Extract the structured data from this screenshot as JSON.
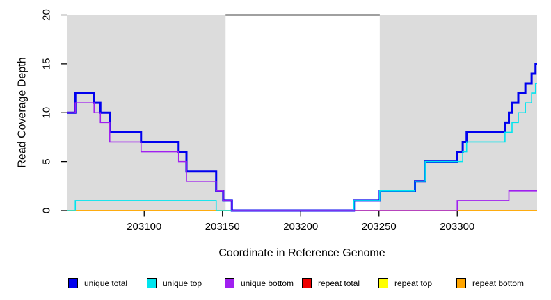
{
  "chart_data": {
    "type": "line",
    "title": "",
    "xlabel": "Coordinate in Reference Genome",
    "ylabel": "Read Coverage Depth",
    "xlim": [
      203051,
      203351
    ],
    "ylim": [
      0,
      20
    ],
    "x_ticks": [
      203100,
      203150,
      203200,
      203250,
      203300
    ],
    "y_ticks": [
      0,
      5,
      10,
      15,
      20
    ],
    "grid": false,
    "step_mode": "after",
    "background": "#FFFFFF",
    "masked_color": "#DCDCDC",
    "masked_regions": [
      [
        203051,
        203152
      ],
      [
        203250.5,
        203351
      ]
    ],
    "top_segment": {
      "y": 20,
      "x": [
        203152,
        203250.5
      ],
      "color": "#000000"
    },
    "legend_position": "bottom",
    "draw_order": [
      "repeat total",
      "repeat top",
      "repeat bottom",
      "unique total",
      "unique top",
      "unique bottom"
    ],
    "series": [
      {
        "name": "unique total",
        "color": "#0000EE",
        "width": 3,
        "points": [
          [
            203051,
            10
          ],
          [
            203056,
            12
          ],
          [
            203068,
            11
          ],
          [
            203072,
            10
          ],
          [
            203078,
            8
          ],
          [
            203098,
            7
          ],
          [
            203122,
            6
          ],
          [
            203127,
            4
          ],
          [
            203146,
            2
          ],
          [
            203150.5,
            1
          ],
          [
            203156,
            0
          ],
          [
            203234,
            1
          ],
          [
            203250.5,
            2
          ],
          [
            203273,
            3
          ],
          [
            203279.5,
            5
          ],
          [
            203300,
            6
          ],
          [
            203303.5,
            7
          ],
          [
            203306,
            8
          ],
          [
            203330.5,
            9
          ],
          [
            203333,
            10
          ],
          [
            203335,
            11
          ],
          [
            203339,
            12
          ],
          [
            203343.5,
            13
          ],
          [
            203347.5,
            14
          ],
          [
            203350,
            15
          ]
        ]
      },
      {
        "name": "unique top",
        "color": "#00E5EE",
        "width": 1.6,
        "points": [
          [
            203051,
            0
          ],
          [
            203056,
            1
          ],
          [
            203146,
            0
          ],
          [
            203234,
            1
          ],
          [
            203250.5,
            2
          ],
          [
            203273,
            3
          ],
          [
            203279.5,
            5
          ],
          [
            203303.5,
            6
          ],
          [
            203306,
            7
          ],
          [
            203330.5,
            8
          ],
          [
            203335,
            9
          ],
          [
            203339,
            10
          ],
          [
            203343.5,
            11
          ],
          [
            203347.5,
            12
          ],
          [
            203350,
            13
          ]
        ]
      },
      {
        "name": "unique bottom",
        "color": "#A020F0",
        "width": 1.6,
        "points": [
          [
            203051,
            10
          ],
          [
            203056,
            11
          ],
          [
            203068,
            10
          ],
          [
            203072,
            9
          ],
          [
            203078,
            7
          ],
          [
            203098,
            6
          ],
          [
            203122,
            5
          ],
          [
            203127,
            3
          ],
          [
            203146,
            2
          ],
          [
            203150.5,
            1
          ],
          [
            203156,
            0
          ],
          [
            203300,
            1
          ],
          [
            203333,
            2
          ]
        ]
      },
      {
        "name": "repeat total",
        "color": "#EE0000",
        "width": 1.6,
        "points": [
          [
            203051,
            0
          ]
        ]
      },
      {
        "name": "repeat top",
        "color": "#FFFF00",
        "width": 1.6,
        "points": [
          [
            203051,
            0
          ]
        ]
      },
      {
        "name": "repeat bottom",
        "color": "#FFA500",
        "width": 1.6,
        "points": [
          [
            203051,
            0
          ]
        ]
      }
    ]
  }
}
